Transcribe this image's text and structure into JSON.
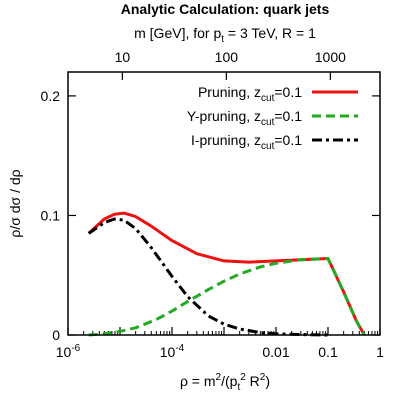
{
  "chart_data": {
    "type": "line",
    "title": "Analytic Calculation: quark jets",
    "top_axis": {
      "label_parts": [
        {
          "t": "m [GeV], for p"
        },
        {
          "t": "t",
          "sub": true
        },
        {
          "t": " = 3 TeV, R = 1"
        }
      ],
      "ticks": [
        {
          "label": "10",
          "rho": 1.11e-05
        },
        {
          "label": "100",
          "rho": 0.00111
        },
        {
          "label": "1000",
          "rho": 0.111
        }
      ]
    },
    "xlabel_parts": [
      {
        "t": "ρ = m"
      },
      {
        "t": "2",
        "sup": true
      },
      {
        "t": "/(p"
      },
      {
        "t": "t",
        "sub": true
      },
      {
        "t": "2",
        "sup": true
      },
      {
        "t": " R"
      },
      {
        "t": "2",
        "sup": true
      },
      {
        "t": ")"
      }
    ],
    "ylabel": "ρ/σ dσ / dρ",
    "x_scale": "log",
    "xlim": [
      1e-06,
      1
    ],
    "ylim": [
      0,
      0.22
    ],
    "x_ticks": [
      {
        "value": 1e-06,
        "base": "10",
        "exp": "-6"
      },
      {
        "value": 0.0001,
        "base": "10",
        "exp": "-4"
      },
      {
        "value": 0.01,
        "label": "0.01"
      },
      {
        "value": 0.1,
        "label": "0.1"
      },
      {
        "value": 1,
        "label": "1"
      }
    ],
    "y_ticks": [
      0,
      0.1,
      0.2
    ],
    "y_tick_labels": [
      "0",
      "0.1",
      "0.2"
    ],
    "grid": false,
    "legend_position": "top-right",
    "series": [
      {
        "name": "Pruning",
        "name_sub": "cut",
        "name_suffix": "=0.1",
        "name_prefix_sym": ", z",
        "color": "#ee1111",
        "dash": "solid",
        "x": [
          2.5e-06,
          5e-06,
          7.8e-06,
          1.2e-05,
          2e-05,
          4e-05,
          0.0001,
          0.0003,
          0.001,
          0.003,
          0.01,
          0.03,
          0.1,
          0.2,
          0.35,
          0.5
        ],
        "y": [
          0.085,
          0.097,
          0.101,
          0.102,
          0.099,
          0.091,
          0.079,
          0.068,
          0.062,
          0.061,
          0.062,
          0.063,
          0.064,
          0.036,
          0.012,
          0.0
        ]
      },
      {
        "name": "Y-pruning",
        "name_sub": "cut",
        "name_suffix": "=0.1",
        "name_prefix_sym": ", z",
        "color": "#22aa22",
        "dash": "dashed",
        "x": [
          2.5e-06,
          5e-06,
          1e-05,
          2e-05,
          5e-05,
          0.0001,
          0.0002,
          0.0005,
          0.001,
          0.002,
          0.005,
          0.01,
          0.03,
          0.1,
          0.2,
          0.35,
          0.5
        ],
        "y": [
          0.0,
          0.001,
          0.003,
          0.006,
          0.013,
          0.02,
          0.028,
          0.038,
          0.045,
          0.051,
          0.057,
          0.06,
          0.063,
          0.064,
          0.036,
          0.012,
          0.0
        ]
      },
      {
        "name": "I-pruning",
        "name_sub": "cut",
        "name_suffix": "=0.1",
        "name_prefix_sym": ", z",
        "color": "#000000",
        "dash": "dashdot",
        "x": [
          2.5e-06,
          5e-06,
          7.8e-06,
          1.2e-05,
          2e-05,
          4e-05,
          0.0001,
          0.0002,
          0.0005,
          0.001,
          0.002,
          0.005,
          0.01,
          0.03,
          0.1
        ],
        "y": [
          0.085,
          0.094,
          0.097,
          0.096,
          0.089,
          0.073,
          0.049,
          0.032,
          0.016,
          0.009,
          0.005,
          0.002,
          0.001,
          0.0003,
          0.0
        ]
      }
    ]
  }
}
